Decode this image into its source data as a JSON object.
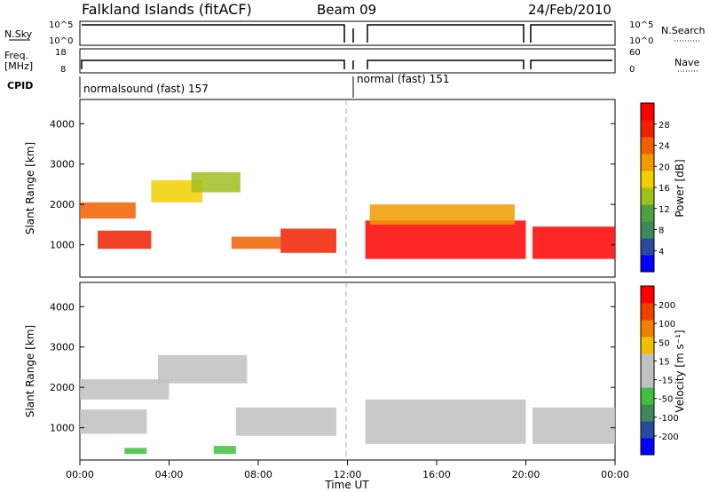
{
  "header": {
    "station": "Falkland Islands (fitACF)",
    "beam": "Beam 09",
    "date": "24/Feb/2010"
  },
  "panel_labels": {
    "nsky": "N.Sky",
    "freq_line1": "Freq.",
    "freq_line2": "[MHz]",
    "cpid": "CPID",
    "nsearch": "N.Search",
    "nave": "Nave",
    "nsky_top": "10^5",
    "nsky_bottom": "10^0",
    "freq_top": "18",
    "freq_bottom": "8",
    "nsearch_top": "10^5",
    "nsearch_bottom": "10^0",
    "nave_top": "60",
    "nave_bottom": "0",
    "cpid_left": "normalsound (fast) 157",
    "cpid_right": "normal (fast) 151"
  },
  "colors": {
    "power": [
      "#0000ff",
      "#2a4aa0",
      "#3c8a5a",
      "#4fa040",
      "#a0c020",
      "#f0d000",
      "#f09a00",
      "#f06000",
      "#f02000",
      "#ff0000"
    ],
    "velocity": [
      "#0000ff",
      "#2a4aa0",
      "#3c8a5a",
      "#40c040",
      "#c0c0c0",
      "#c0c0c0",
      "#f0c000",
      "#f08000",
      "#f04000",
      "#ff0000"
    ]
  },
  "chart_data": [
    {
      "type": "heatmap",
      "name": "Power",
      "ylabel": "Slant Range [km]",
      "ylim": [
        200,
        4600
      ],
      "yticks": [
        1000,
        2000,
        3000,
        4000
      ],
      "colorbar_label": "Power [dB]",
      "colorbar_ticks": [
        "4",
        "8",
        "12",
        "16",
        "20",
        "24",
        "28"
      ],
      "regions": [
        {
          "x": [
            0.0,
            2.5
          ],
          "y": [
            1650,
            2050
          ],
          "level": 7
        },
        {
          "x": [
            0.8,
            3.2
          ],
          "y": [
            900,
            1350
          ],
          "level": 8
        },
        {
          "x": [
            3.2,
            5.5
          ],
          "y": [
            2050,
            2600
          ],
          "level": 5
        },
        {
          "x": [
            5.0,
            7.2
          ],
          "y": [
            2300,
            2800
          ],
          "level": 4
        },
        {
          "x": [
            6.8,
            9.0
          ],
          "y": [
            900,
            1200
          ],
          "level": 7
        },
        {
          "x": [
            9.0,
            11.5
          ],
          "y": [
            800,
            1400
          ],
          "level": 8
        },
        {
          "x": [
            12.8,
            20.0
          ],
          "y": [
            650,
            1600
          ],
          "level": 9
        },
        {
          "x": [
            20.3,
            24.0
          ],
          "y": [
            650,
            1450
          ],
          "level": 9
        },
        {
          "x": [
            13.0,
            19.5
          ],
          "y": [
            1500,
            2000
          ],
          "level": 6
        }
      ]
    },
    {
      "type": "heatmap",
      "name": "Velocity",
      "xlabel": "Time UT",
      "ylabel": "Slant Range [km]",
      "ylim": [
        200,
        4600
      ],
      "yticks": [
        1000,
        2000,
        3000,
        4000
      ],
      "xticks": [
        "00:00",
        "04:00",
        "08:00",
        "12:00",
        "16:00",
        "20:00",
        "00:00"
      ],
      "colorbar_label": "Velocity [m s⁻¹]",
      "colorbar_ticks": [
        "200",
        "100",
        "50",
        "15",
        "-15",
        "-50",
        "-100",
        "-200"
      ],
      "regions": [
        {
          "x": [
            0.0,
            4.0
          ],
          "y": [
            1700,
            2200
          ],
          "level": 4
        },
        {
          "x": [
            3.5,
            7.5
          ],
          "y": [
            2100,
            2800
          ],
          "level": 4
        },
        {
          "x": [
            0.0,
            3.0
          ],
          "y": [
            850,
            1450
          ],
          "level": 4
        },
        {
          "x": [
            7.0,
            11.5
          ],
          "y": [
            800,
            1500
          ],
          "level": 4
        },
        {
          "x": [
            12.8,
            20.0
          ],
          "y": [
            600,
            1700
          ],
          "level": 4
        },
        {
          "x": [
            20.3,
            24.0
          ],
          "y": [
            600,
            1500
          ],
          "level": 4
        },
        {
          "x": [
            6.0,
            7.0
          ],
          "y": [
            350,
            550
          ],
          "level": 3
        },
        {
          "x": [
            2.0,
            3.0
          ],
          "y": [
            350,
            500
          ],
          "level": 3
        }
      ]
    }
  ]
}
